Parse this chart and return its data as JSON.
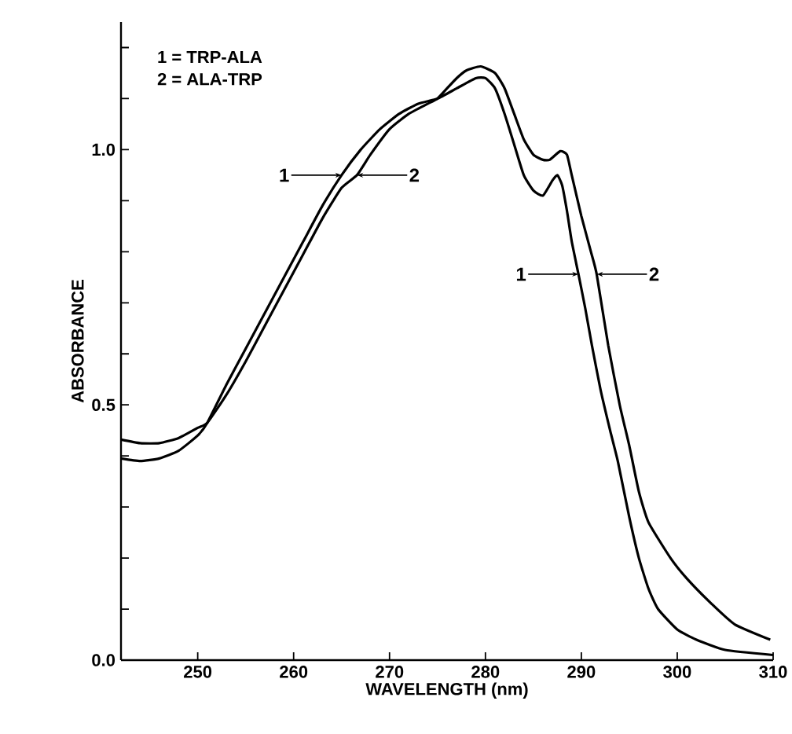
{
  "chart_data": {
    "type": "line",
    "xlabel": "WAVELENGTH (nm)",
    "ylabel": "ABSORBANCE",
    "x": [
      242,
      244,
      246,
      248,
      250,
      251,
      253,
      255,
      257,
      259,
      261,
      263,
      265,
      267,
      269,
      271,
      273,
      275,
      277,
      279,
      280,
      281,
      282,
      283,
      284,
      285,
      286,
      287,
      287.5,
      288,
      288.5,
      289,
      289.7,
      290.4,
      291.1,
      292,
      293,
      293.8,
      295,
      296,
      297,
      298,
      300,
      302,
      305,
      310
    ],
    "series": [
      {
        "color": "#000000",
        "values": [
          0.395,
          0.39,
          0.395,
          0.41,
          0.44,
          0.465,
          0.54,
          0.61,
          0.68,
          0.75,
          0.82,
          0.89,
          0.95,
          1.0,
          1.04,
          1.07,
          1.09,
          1.1,
          1.12,
          1.14,
          1.14,
          1.12,
          1.07,
          1.01,
          0.95,
          0.92,
          0.91,
          0.94,
          0.95,
          0.93,
          0.88,
          0.82,
          0.756,
          0.69,
          0.617,
          0.53,
          0.45,
          0.39,
          0.28,
          0.2,
          0.14,
          0.1,
          0.06,
          0.04,
          0.02,
          0.01
        ]
      },
      {
        "color": "#000000",
        "x": [
          242,
          244,
          246,
          248,
          250,
          251,
          253,
          255,
          257,
          259,
          261,
          263,
          265,
          266.6,
          268,
          270,
          272,
          274,
          275,
          276,
          277,
          278,
          279.5,
          281,
          282,
          283,
          284,
          285,
          286,
          286.7,
          287.8,
          288.5,
          289,
          290,
          291,
          291.6,
          292.8,
          294,
          295,
          296,
          297,
          299.3,
          301,
          303.6,
          306,
          309.7
        ],
        "values": [
          0.432,
          0.425,
          0.425,
          0.435,
          0.455,
          0.465,
          0.52,
          0.585,
          0.655,
          0.725,
          0.795,
          0.865,
          0.925,
          0.95,
          0.99,
          1.04,
          1.07,
          1.09,
          1.1,
          1.12,
          1.14,
          1.155,
          1.163,
          1.15,
          1.12,
          1.07,
          1.02,
          0.99,
          0.98,
          0.98,
          0.997,
          0.99,
          0.95,
          0.87,
          0.8,
          0.756,
          0.617,
          0.5,
          0.42,
          0.33,
          0.27,
          0.2,
          0.16,
          0.11,
          0.07,
          0.04
        ]
      }
    ],
    "annotations": [
      "1 = TRP-ALA",
      "2 = ALA-TRP",
      {
        "text": "1",
        "x": 265,
        "y": 0.95
      },
      {
        "text": "2",
        "x": 266.6,
        "y": 0.95
      },
      {
        "text": "1",
        "x": 289.7,
        "y": 0.756
      },
      {
        "text": "2",
        "x": 291.6,
        "y": 0.756
      }
    ],
    "xlim": [
      242,
      310
    ],
    "ylim": [
      0,
      1.25
    ],
    "xticks": [
      250,
      260,
      270,
      280,
      290,
      300,
      310
    ],
    "yticks": [
      {
        "value": 0,
        "label": "0.0"
      },
      {
        "value": 0.1,
        "label": null
      },
      {
        "value": 0.2,
        "label": null
      },
      {
        "value": 0.3,
        "label": null
      },
      {
        "value": 0.4,
        "label": null
      },
      {
        "value": 0.5,
        "label": "0.5"
      },
      {
        "value": 0.6,
        "label": null
      },
      {
        "value": 0.7,
        "label": null
      },
      {
        "value": 0.8,
        "label": null
      },
      {
        "value": 0.9,
        "label": null
      },
      {
        "value": 1.0,
        "label": "1.0"
      },
      {
        "value": 1.1,
        "label": null
      },
      {
        "value": 1.2,
        "label": null
      }
    ],
    "marker": "none",
    "line_style": "solid"
  }
}
